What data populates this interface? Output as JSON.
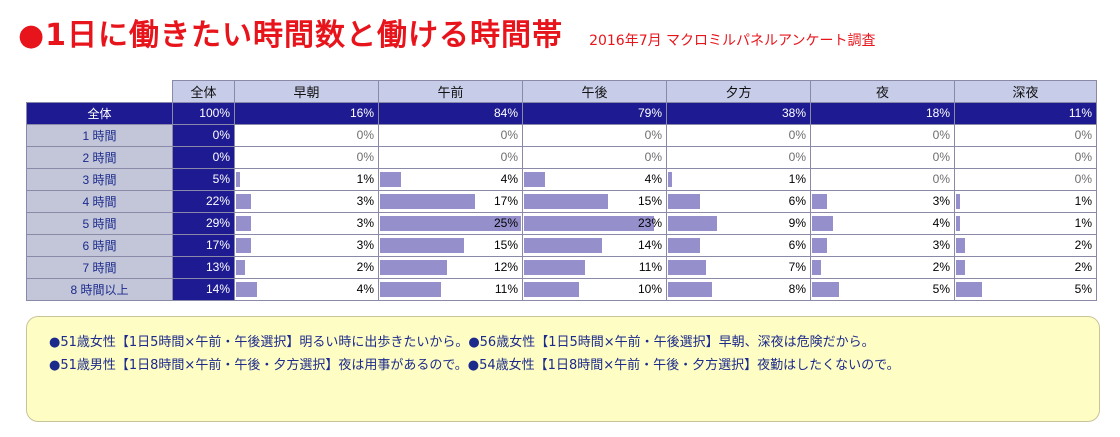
{
  "title": "●1日に働きたい時間数と働ける時間帯",
  "subtitle": "2016年7月 マクロミルパネルアンケート調査",
  "chart_data": {
    "type": "table",
    "columns": [
      "全体",
      "早朝",
      "午前",
      "午後",
      "夕方",
      "夜",
      "深夜"
    ],
    "rows": [
      {
        "label": "全体",
        "values": [
          "100%",
          "16%",
          "84%",
          "79%",
          "38%",
          "18%",
          "11%"
        ],
        "pct": [
          100,
          16,
          84,
          79,
          38,
          18,
          11
        ]
      },
      {
        "label": "1 時間",
        "values": [
          "0%",
          "0%",
          "0%",
          "0%",
          "0%",
          "0%",
          "0%"
        ],
        "pct": [
          0,
          0,
          0,
          0,
          0,
          0,
          0
        ]
      },
      {
        "label": "2 時間",
        "values": [
          "0%",
          "0%",
          "0%",
          "0%",
          "0%",
          "0%",
          "0%"
        ],
        "pct": [
          0,
          0,
          0,
          0,
          0,
          0,
          0
        ]
      },
      {
        "label": "3 時間",
        "values": [
          "5%",
          "1%",
          "4%",
          "4%",
          "1%",
          "0%",
          "0%"
        ],
        "pct": [
          5,
          1,
          4,
          4,
          1,
          0,
          0
        ]
      },
      {
        "label": "4 時間",
        "values": [
          "22%",
          "3%",
          "17%",
          "15%",
          "6%",
          "3%",
          "1%"
        ],
        "pct": [
          22,
          3,
          17,
          15,
          6,
          3,
          1
        ]
      },
      {
        "label": "5 時間",
        "values": [
          "29%",
          "3%",
          "25%",
          "23%",
          "9%",
          "4%",
          "1%"
        ],
        "pct": [
          29,
          3,
          25,
          23,
          9,
          4,
          1
        ]
      },
      {
        "label": "6 時間",
        "values": [
          "17%",
          "3%",
          "15%",
          "14%",
          "6%",
          "3%",
          "2%"
        ],
        "pct": [
          17,
          3,
          15,
          14,
          6,
          3,
          2
        ]
      },
      {
        "label": "7 時間",
        "values": [
          "13%",
          "2%",
          "12%",
          "11%",
          "7%",
          "2%",
          "2%"
        ],
        "pct": [
          13,
          2,
          12,
          11,
          7,
          2,
          2
        ]
      },
      {
        "label": "8 時間以上",
        "values": [
          "14%",
          "4%",
          "11%",
          "10%",
          "8%",
          "5%",
          "5%"
        ],
        "pct": [
          14,
          4,
          11,
          10,
          8,
          5,
          5
        ]
      }
    ],
    "bar_scale_max": 25
  },
  "notes": [
    "●51歳女性【1日5時間×午前・午後選択】明るい時に出歩きたいから。●56歳女性【1日5時間×午前・午後選択】早朝、深夜は危険だから。",
    "●51歳男性【1日8時間×午前・午後・夕方選択】夜は用事があるので。●54歳女性【1日8時間×午前・午後・夕方選択】夜勤はしたくないので。"
  ],
  "colors": {
    "title": "#e8141b",
    "header_bg": "#c7cce8",
    "rowhead_bg": "#c2c6d8",
    "total_bg": "#1e1b92",
    "bar": "#9590cc",
    "note_bg": "#fefdc4",
    "note_text": "#1c2a8c"
  }
}
